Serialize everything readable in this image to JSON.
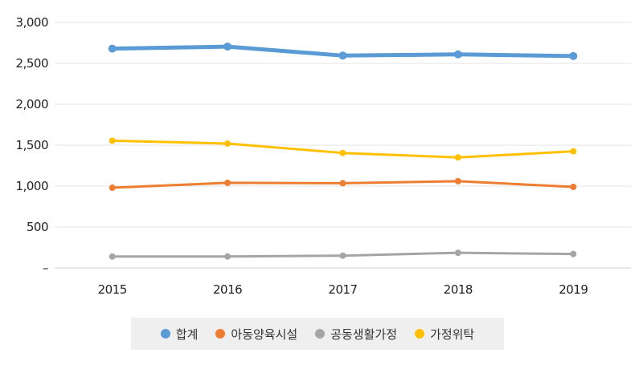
{
  "chart_data": {
    "type": "line",
    "categories": [
      "2015",
      "2016",
      "2017",
      "2018",
      "2019"
    ],
    "ylim": [
      0,
      3000
    ],
    "yticks": [
      0,
      500,
      1000,
      1500,
      2000,
      2500,
      3000
    ],
    "ytick_labels": [
      "–",
      "500",
      "1,000",
      "1,500",
      "2,000",
      "2,500",
      "3,000"
    ],
    "grid": true,
    "legend_position": "bottom",
    "series": [
      {
        "name": "합계",
        "values": [
          2680,
          2705,
          2595,
          2610,
          2590
        ],
        "color": "#5b9bd5"
      },
      {
        "name": "아동양육시설",
        "values": [
          980,
          1040,
          1035,
          1060,
          990
        ],
        "color": "#ed7d31"
      },
      {
        "name": "공동생활가정",
        "values": [
          140,
          140,
          150,
          185,
          170
        ],
        "color": "#a5a5a5"
      },
      {
        "name": "가정위탁",
        "values": [
          1555,
          1520,
          1405,
          1350,
          1425
        ],
        "color": "#ffc000"
      }
    ]
  }
}
